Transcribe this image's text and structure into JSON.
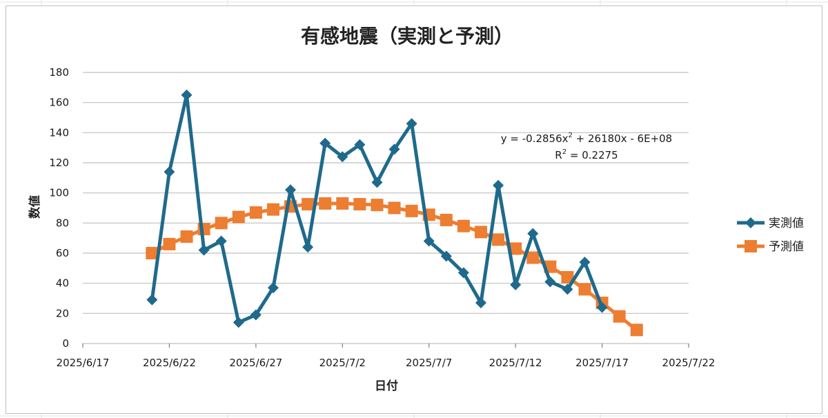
{
  "chart_data": {
    "type": "line",
    "title": "有感地震（実測と予測）",
    "xlabel": "日付",
    "ylabel": "数値",
    "x_range": [
      "2025-06-17",
      "2025-07-22"
    ],
    "x_ticks": [
      "2025/6/17",
      "2025/6/22",
      "2025/6/27",
      "2025/7/2",
      "2025/7/7",
      "2025/7/12",
      "2025/7/17",
      "2025/7/22"
    ],
    "ylim": [
      0,
      180
    ],
    "y_ticks": [
      "0",
      "20",
      "40",
      "60",
      "80",
      "100",
      "120",
      "140",
      "160",
      "180"
    ],
    "grid": "horizontal",
    "legend_position": "right",
    "trendline": {
      "equation_prefix": "y = -0.2856x",
      "equation_exp": "2",
      "equation_suffix": " + 26180x - 6E+08",
      "r2_prefix": "R",
      "r2_exp": "2",
      "r2_suffix": " = 0.2275"
    },
    "series": [
      {
        "name": "実測値",
        "color": "#1f6a8c",
        "marker": "diamond",
        "x": [
          "2025-06-21",
          "2025-06-22",
          "2025-06-23",
          "2025-06-24",
          "2025-06-25",
          "2025-06-26",
          "2025-06-27",
          "2025-06-28",
          "2025-06-29",
          "2025-06-30",
          "2025-07-01",
          "2025-07-02",
          "2025-07-03",
          "2025-07-04",
          "2025-07-05",
          "2025-07-06",
          "2025-07-07",
          "2025-07-08",
          "2025-07-09",
          "2025-07-10",
          "2025-07-11",
          "2025-07-12",
          "2025-07-13",
          "2025-07-14",
          "2025-07-15",
          "2025-07-16",
          "2025-07-17"
        ],
        "values": [
          29,
          114,
          165,
          62,
          68,
          14,
          19,
          37,
          102,
          64,
          133,
          124,
          132,
          107,
          129,
          146,
          68,
          58,
          47,
          27,
          105,
          39,
          73,
          41,
          36,
          54,
          24
        ]
      },
      {
        "name": "予測値",
        "color": "#ed7d31",
        "marker": "square",
        "x": [
          "2025-06-21",
          "2025-06-22",
          "2025-06-23",
          "2025-06-24",
          "2025-06-25",
          "2025-06-26",
          "2025-06-27",
          "2025-06-28",
          "2025-06-29",
          "2025-06-30",
          "2025-07-01",
          "2025-07-02",
          "2025-07-03",
          "2025-07-04",
          "2025-07-05",
          "2025-07-06",
          "2025-07-07",
          "2025-07-08",
          "2025-07-09",
          "2025-07-10",
          "2025-07-11",
          "2025-07-12",
          "2025-07-13",
          "2025-07-14",
          "2025-07-15",
          "2025-07-16",
          "2025-07-17",
          "2025-07-18",
          "2025-07-19"
        ],
        "values": [
          60,
          66,
          71,
          76,
          80,
          84,
          87,
          89,
          91,
          92.5,
          93,
          93,
          92.5,
          92,
          90,
          88,
          85.5,
          82,
          78,
          74,
          69,
          63,
          57,
          51,
          44,
          36,
          27,
          18,
          9
        ]
      }
    ]
  }
}
